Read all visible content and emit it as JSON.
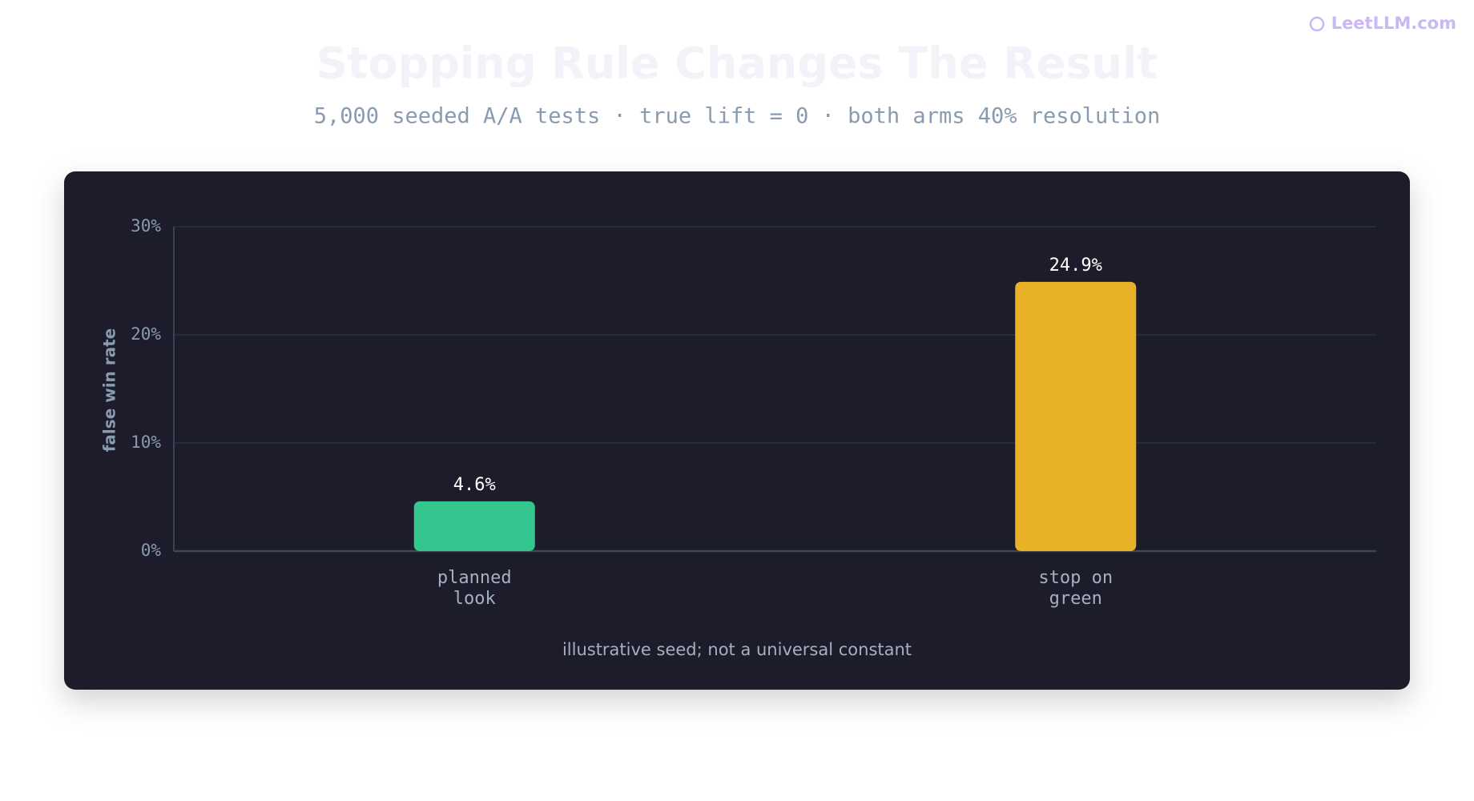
{
  "brand": "LeetLLM.com",
  "chart_data": {
    "type": "bar",
    "title": "Stopping Rule Changes The Result",
    "subtitle": "5,000 seeded A/A tests · true lift = 0 · both arms 40% resolution",
    "y_label": "false win rate",
    "note": "illustrative seed; not a universal constant",
    "categories": [
      "planned\nlook",
      "stop on\ngreen"
    ],
    "values": [
      4.6,
      24.9
    ],
    "value_labels": [
      "4.6%",
      "24.9%"
    ],
    "colors": [
      "#34c68f",
      "#e8b127"
    ],
    "ylim": [
      0,
      30
    ],
    "yticks": [
      {
        "value": 0,
        "label": "0%"
      },
      {
        "value": 10,
        "label": "10%"
      },
      {
        "value": 20,
        "label": "20%"
      },
      {
        "value": 30,
        "label": "30%"
      }
    ],
    "grid": true
  }
}
